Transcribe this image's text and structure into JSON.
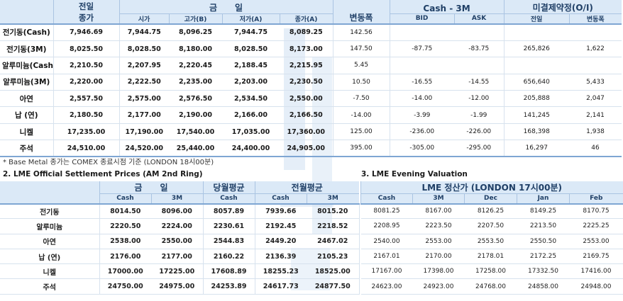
{
  "table1": {
    "headers": {
      "prev_close_l1": "전일",
      "prev_close_l2": "종가",
      "today": "금      일",
      "open": "시가",
      "high": "고가(B)",
      "low": "저가(A)",
      "close": "종가(A)",
      "change": "변동폭",
      "cash3m": "Cash - 3M",
      "bid": "BID",
      "ask": "ASK",
      "oi": "미결제약정(O/I)",
      "oi_prev": "전일",
      "oi_change": "변동폭"
    },
    "rows": [
      {
        "name": "전기동(Cash)",
        "prev": "7,946.69",
        "open": "7,944.75",
        "high": "8,096.25",
        "low": "7,944.75",
        "close": "8,089.25",
        "change": "142.56",
        "bid": "",
        "ask": "",
        "oi_prev": "",
        "oi_change": ""
      },
      {
        "name": "전기동(3M)",
        "prev": "8,025.50",
        "open": "8,028.50",
        "high": "8,180.00",
        "low": "8,028.50",
        "close": "8,173.00",
        "change": "147.50",
        "bid": "-87.75",
        "ask": "-83.75",
        "oi_prev": "265,826",
        "oi_change": "1,622"
      },
      {
        "name": "알루미늄(Cash)",
        "prev": "2,210.50",
        "open": "2,207.95",
        "high": "2,220.45",
        "low": "2,188.45",
        "close": "2,215.95",
        "change": "5.45",
        "bid": "",
        "ask": "",
        "oi_prev": "",
        "oi_change": ""
      },
      {
        "name": "알루미늄(3M)",
        "prev": "2,220.00",
        "open": "2,222.50",
        "high": "2,235.00",
        "low": "2,203.00",
        "close": "2,230.50",
        "change": "10.50",
        "bid": "-16.55",
        "ask": "-14.55",
        "oi_prev": "656,640",
        "oi_change": "5,433"
      },
      {
        "name": "아연",
        "prev": "2,557.50",
        "open": "2,575.00",
        "high": "2,576.50",
        "low": "2,534.50",
        "close": "2,550.00",
        "change": "-7.50",
        "bid": "-14.00",
        "ask": "-12.00",
        "oi_prev": "205,888",
        "oi_change": "2,047"
      },
      {
        "name": "납 (연)",
        "prev": "2,180.50",
        "open": "2,177.00",
        "high": "2,190.00",
        "low": "2,166.00",
        "close": "2,166.50",
        "change": "-14.00",
        "bid": "-3.99",
        "ask": "-1.99",
        "oi_prev": "141,245",
        "oi_change": "2,141"
      },
      {
        "name": "니켈",
        "prev": "17,235.00",
        "open": "17,190.00",
        "high": "17,540.00",
        "low": "17,035.00",
        "close": "17,360.00",
        "change": "125.00",
        "bid": "-236.00",
        "ask": "-226.00",
        "oi_prev": "168,398",
        "oi_change": "1,938"
      },
      {
        "name": "주석",
        "prev": "24,510.00",
        "open": "24,520.00",
        "high": "25,440.00",
        "low": "24,400.00",
        "close": "24,905.00",
        "change": "395.00",
        "bid": "-305.00",
        "ask": "-295.00",
        "oi_prev": "16,297",
        "oi_change": "46"
      }
    ]
  },
  "note": "* Base Metal 종가는 COMEX 종료시점 기준 (LONDON 18시00분)",
  "section2_title": "2. LME Official Settlement Prices (AM 2nd Ring)",
  "section3_title": "3. LME Evening Valuation",
  "table2": {
    "headers": {
      "today": "금      일",
      "month_avg": "당월평균",
      "prev_month_avg": "전월평균",
      "cash": "Cash",
      "m3": "3M"
    },
    "rows": [
      {
        "name": "전기동",
        "cash": "8014.50",
        "m3": "8096.00",
        "avg_cash": "8057.89",
        "prev_cash": "7939.66",
        "prev_3m": "8015.20"
      },
      {
        "name": "알루미늄",
        "cash": "2220.50",
        "m3": "2224.00",
        "avg_cash": "2230.61",
        "prev_cash": "2192.45",
        "prev_3m": "2218.52"
      },
      {
        "name": "아연",
        "cash": "2538.00",
        "m3": "2550.00",
        "avg_cash": "2544.83",
        "prev_cash": "2449.20",
        "prev_3m": "2467.02"
      },
      {
        "name": "납 (연)",
        "cash": "2176.00",
        "m3": "2177.00",
        "avg_cash": "2160.22",
        "prev_cash": "2136.39",
        "prev_3m": "2105.23"
      },
      {
        "name": "니켈",
        "cash": "17000.00",
        "m3": "17225.00",
        "avg_cash": "17608.89",
        "prev_cash": "18255.23",
        "prev_3m": "18525.00"
      },
      {
        "name": "주석",
        "cash": "24750.00",
        "m3": "24975.00",
        "avg_cash": "24253.89",
        "prev_cash": "24617.73",
        "prev_3m": "24877.50"
      }
    ]
  },
  "table3": {
    "headers": {
      "title": "LME 정산가 (LONDON 17시00분)",
      "cash": "Cash",
      "m3": "3M",
      "dec": "Dec",
      "jan": "Jan",
      "feb": "Feb"
    },
    "rows": [
      {
        "cash": "8081.25",
        "m3": "8167.00",
        "dec": "8126.25",
        "jan": "8149.25",
        "feb": "8170.75"
      },
      {
        "cash": "2208.95",
        "m3": "2223.50",
        "dec": "2207.50",
        "jan": "2213.50",
        "feb": "2225.25"
      },
      {
        "cash": "2540.00",
        "m3": "2553.00",
        "dec": "2553.50",
        "jan": "2550.50",
        "feb": "2553.00"
      },
      {
        "cash": "2167.01",
        "m3": "2170.00",
        "dec": "2178.01",
        "jan": "2172.25",
        "feb": "2169.75"
      },
      {
        "cash": "17167.00",
        "m3": "17398.00",
        "dec": "17258.00",
        "jan": "17332.50",
        "feb": "17416.00"
      },
      {
        "cash": "24623.00",
        "m3": "24923.00",
        "dec": "24768.00",
        "jan": "24858.00",
        "feb": "24948.00"
      }
    ]
  }
}
